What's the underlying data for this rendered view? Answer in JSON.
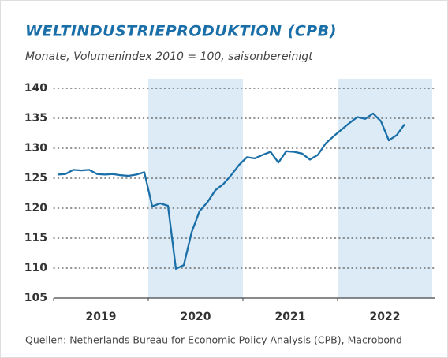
{
  "chart_data": {
    "type": "line",
    "title": "WELTINDUSTRIEPRODUKTION (CPB)",
    "subtitle": "Monate, Volumenindex 2010 = 100, saisonbereinigt",
    "source": "Quellen: Netherlands Bureau for Economic Policy Analysis (CPB), Macrobond",
    "x": [
      2019.042,
      2019.125,
      2019.208,
      2019.292,
      2019.375,
      2019.458,
      2019.542,
      2019.625,
      2019.708,
      2019.792,
      2019.875,
      2019.958,
      2020.042,
      2020.125,
      2020.208,
      2020.292,
      2020.375,
      2020.458,
      2020.542,
      2020.625,
      2020.708,
      2020.792,
      2020.875,
      2020.958,
      2021.042,
      2021.125,
      2021.208,
      2021.292,
      2021.375,
      2021.458,
      2021.542,
      2021.625,
      2021.708,
      2021.792,
      2021.875,
      2021.958,
      2022.042,
      2022.125,
      2022.208,
      2022.292,
      2022.375,
      2022.458,
      2022.542,
      2022.625,
      2022.708
    ],
    "series": [
      {
        "color": "#1a6fa8",
        "values": [
          125.6,
          125.7,
          126.4,
          126.3,
          126.4,
          125.7,
          125.6,
          125.7,
          125.5,
          125.4,
          125.6,
          126.0,
          120.3,
          120.8,
          120.4,
          109.9,
          110.5,
          116.0,
          119.5,
          121.0,
          123.0,
          124.0,
          125.5,
          127.2,
          128.5,
          128.3,
          128.9,
          129.4,
          127.6,
          129.5,
          129.4,
          129.1,
          128.1,
          128.9,
          130.8,
          132.0,
          133.1,
          134.2,
          135.2,
          134.9,
          135.8,
          134.5,
          131.3,
          132.2,
          134.0
        ]
      }
    ],
    "xlim": [
      2019,
      2023
    ],
    "xticks": [
      2019,
      2020,
      2021,
      2022
    ],
    "shaded_years": [
      2020,
      2022
    ],
    "shade_color": "#dcebf6",
    "ylim": [
      105,
      140
    ],
    "yticks": [
      105,
      110,
      115,
      120,
      125,
      130,
      135,
      140
    ],
    "grid": true
  }
}
